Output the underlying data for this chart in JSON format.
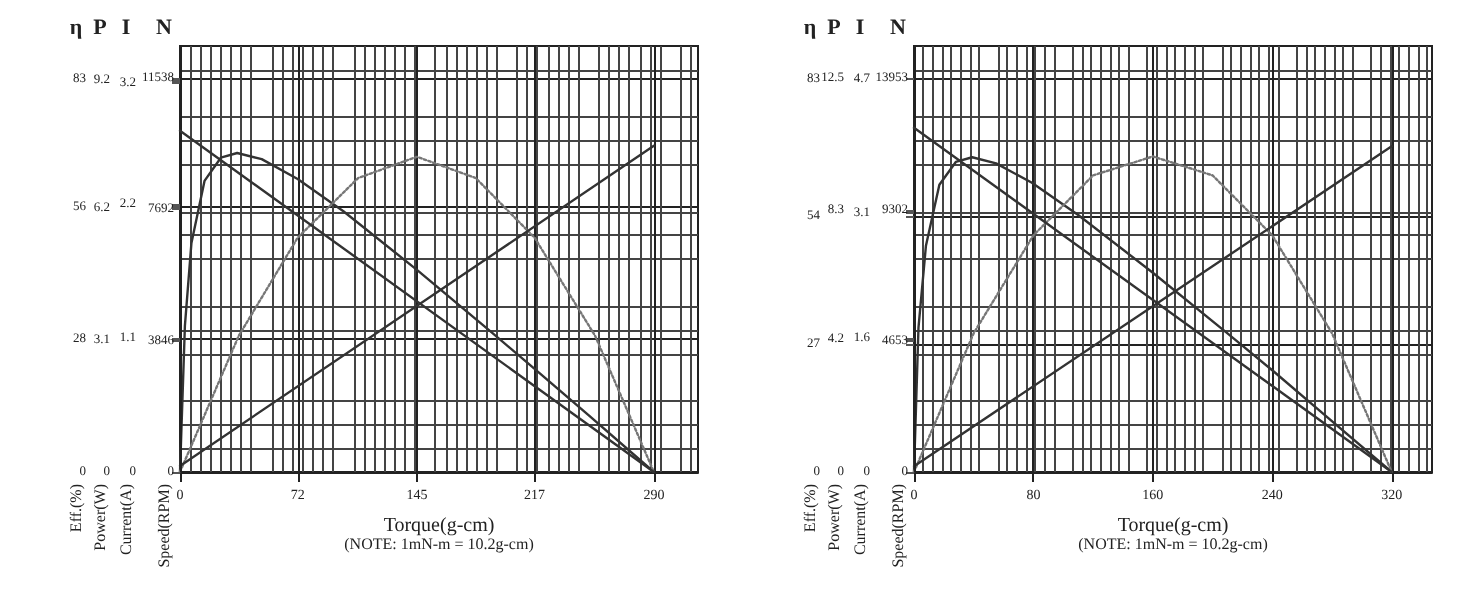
{
  "chart_data": [
    {
      "type": "line",
      "xlabel": "Torque(g-cm)",
      "ylabel": "Eff.(%)",
      "y2label": "Power(W)",
      "y3label": "Current(A)",
      "annotations": [
        "η",
        "P",
        "I",
        "(NOTE: 1mN-m = 10.2g-cm)"
      ],
      "xlim": [
        0,
        317
      ],
      "xticks": [
        0,
        72,
        145,
        217,
        290
      ],
      "ylim": [
        0,
        90
      ],
      "yticks": [
        0,
        28,
        56,
        83
      ],
      "y2lim": [
        0,
        10
      ],
      "y2ticks": [
        0,
        3.1,
        6.2,
        9.2
      ],
      "y3lim": [
        0,
        3.5
      ],
      "y3ticks": [
        0,
        1.1,
        2.2,
        3.2
      ],
      "grid": true,
      "series": [
        {
          "color": "#333333",
          "line_style": "solid",
          "x": [
            0,
            3,
            7,
            15,
            25,
            35,
            50,
            72,
            100,
            145,
            190,
            217,
            250,
            290
          ],
          "values": [
            0,
            30.9,
            48.4,
            61.5,
            66.4,
            67.4,
            66.1,
            61.9,
            55.1,
            42.7,
            29.7,
            21.8,
            12.0,
            0
          ]
        },
        {
          "color": "#777777",
          "line_style": "dotted",
          "axis": "y2",
          "x": [
            0,
            36,
            72,
            109,
            145,
            181,
            217,
            254,
            290
          ],
          "values": [
            0,
            3.2,
            5.5,
            6.9,
            7.4,
            6.9,
            5.5,
            3.2,
            0
          ]
        },
        {
          "color": "#333333",
          "line_style": "solid",
          "axis": "y3",
          "x": [
            0,
            290
          ],
          "values": [
            0.05,
            2.68
          ]
        }
      ]
    },
    {
      "type": "line",
      "ylabel": "Speed(RPM)",
      "annotations": [
        "N"
      ],
      "tick_labels": "y",
      "xlim": [
        0,
        317
      ],
      "xticks": [
        0,
        72,
        145,
        217,
        290
      ],
      "ylim": [
        0,
        12480
      ],
      "yticks": [
        0,
        3846,
        7692,
        11538
      ],
      "series": [
        {
          "color": "#333333",
          "line_style": "solid",
          "x": [
            0,
            290
          ],
          "values": [
            10000,
            0
          ]
        }
      ]
    },
    {
      "type": "line",
      "xlabel": "Torque(g-cm)",
      "ylabel": "Eff.(%)",
      "y2label": "Power(W)",
      "y3label": "Current(A)",
      "annotations": [
        "η",
        "P",
        "I",
        "(NOTE: 1mN-m = 10.2g-cm)"
      ],
      "xlim": [
        0,
        347
      ],
      "xticks": [
        0,
        80,
        160,
        240,
        320
      ],
      "ylim": [
        0,
        90
      ],
      "yticks": [
        0,
        27,
        54,
        83
      ],
      "y2lim": [
        0,
        13.5
      ],
      "y2ticks": [
        0,
        4.2,
        8.3,
        12.5
      ],
      "y3lim": [
        0,
        5.1
      ],
      "y3ticks": [
        0,
        1.6,
        3.1,
        4.7
      ],
      "grid": true,
      "series": [
        {
          "color": "#333333",
          "line_style": "solid",
          "x": [
            0,
            3,
            8,
            17,
            28,
            39,
            55,
            79,
            110,
            160,
            210,
            240,
            276,
            320
          ],
          "values": [
            0,
            30.5,
            47.8,
            60.7,
            65.5,
            66.5,
            65.2,
            61.1,
            54.3,
            42.1,
            29.3,
            21.5,
            11.8,
            0
          ]
        },
        {
          "color": "#777777",
          "line_style": "dotted",
          "axis": "y2",
          "x": [
            0,
            40,
            80,
            120,
            160,
            200,
            240,
            280,
            320
          ],
          "values": [
            0,
            4.4,
            7.5,
            9.4,
            10,
            9.4,
            7.5,
            4.4,
            0
          ]
        },
        {
          "color": "#333333",
          "line_style": "solid",
          "axis": "y3",
          "x": [
            0,
            320
          ],
          "values": [
            0.07,
            3.9
          ]
        }
      ]
    },
    {
      "type": "line",
      "ylabel": "Speed(RPM)",
      "annotations": [
        "N"
      ],
      "tick_labels": "y",
      "xlim": [
        0,
        347
      ],
      "xticks": [
        0,
        80,
        160,
        240,
        320
      ],
      "ylim": [
        0,
        15100
      ],
      "yticks": [
        0,
        4653,
        9302,
        13953
      ],
      "series": [
        {
          "color": "#333333",
          "line_style": "solid",
          "x": [
            0,
            320
          ],
          "values": [
            12200,
            0
          ]
        }
      ]
    }
  ]
}
